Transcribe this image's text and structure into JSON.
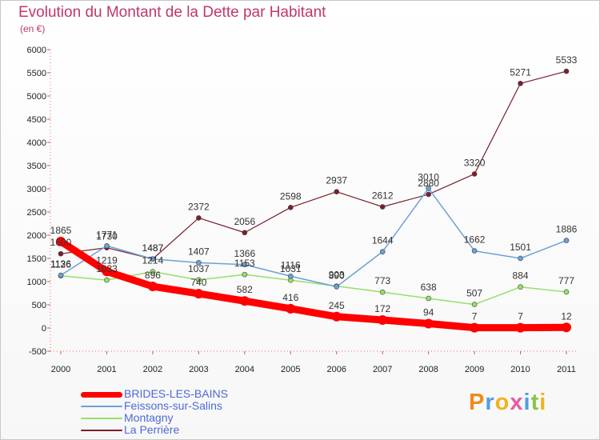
{
  "chart_data": {
    "type": "line",
    "title": "Evolution du Montant de la Dette par Habitant",
    "subtitle": "(en €)",
    "categories": [
      "2000",
      "2001",
      "2002",
      "2003",
      "2004",
      "2005",
      "2006",
      "2007",
      "2008",
      "2009",
      "2010",
      "2011"
    ],
    "ylim": [
      -500,
      6000
    ],
    "y_ticks": [
      -500,
      0,
      500,
      1000,
      1500,
      2000,
      2500,
      3000,
      3500,
      4000,
      4500,
      5000,
      5500,
      6000
    ],
    "grid": false,
    "legend_position": "bottom-left",
    "series": [
      {
        "name": "La Perrière",
        "color": "#7a1f2b",
        "width": 1.2,
        "values": [
          1600,
          1730,
          1487,
          2372,
          2056,
          2598,
          2937,
          2612,
          2880,
          3320,
          5271,
          5533
        ],
        "labels": [
          "1600",
          "1730",
          "1487",
          "2372",
          "2056",
          "2598",
          "2937",
          "2612",
          "2880",
          "3320",
          "5271",
          "5533"
        ]
      },
      {
        "name": "Montagny",
        "color": "#96e06a",
        "width": 1.5,
        "values": [
          1126,
          1033,
          1214,
          1037,
          1153,
          1031,
          903,
          773,
          638,
          507,
          884,
          777
        ],
        "labels": [
          "1126",
          "1033",
          "1214",
          "1037",
          "1153",
          "1031",
          "903",
          "773",
          "638",
          "507",
          "884",
          "777"
        ]
      },
      {
        "name": "Feissons-sur-Salins",
        "color": "#6aa1d8",
        "width": 1.5,
        "values": [
          1136,
          1771,
          1487,
          1407,
          1366,
          1116,
          890,
          1644,
          3010,
          1662,
          1501,
          1886
        ],
        "labels": [
          "1136",
          "1771",
          "1487",
          "1407",
          "1366",
          "1116",
          "890",
          "1644",
          "3010",
          "1662",
          "1501",
          "1886"
        ]
      },
      {
        "name": "BRIDES-LES-BAINS",
        "color": "#ff0000",
        "width": 9,
        "values": [
          1865,
          1219,
          896,
          740,
          582,
          416,
          245,
          172,
          94,
          7,
          7,
          12
        ],
        "labels": [
          "1865",
          "1219",
          "896",
          "740",
          "582",
          "416",
          "245",
          "172",
          "94",
          "7",
          "7",
          "12"
        ]
      }
    ]
  },
  "legend": [
    {
      "name": "BRIDES-LES-BAINS",
      "color": "#ff0000"
    },
    {
      "name": "Feissons-sur-Salins",
      "color": "#6aa1d8"
    },
    {
      "name": "Montagny",
      "color": "#96e06a"
    },
    {
      "name": "La Perrière",
      "color": "#7a1f2b"
    }
  ],
  "logo": {
    "text": "Proxiti"
  }
}
